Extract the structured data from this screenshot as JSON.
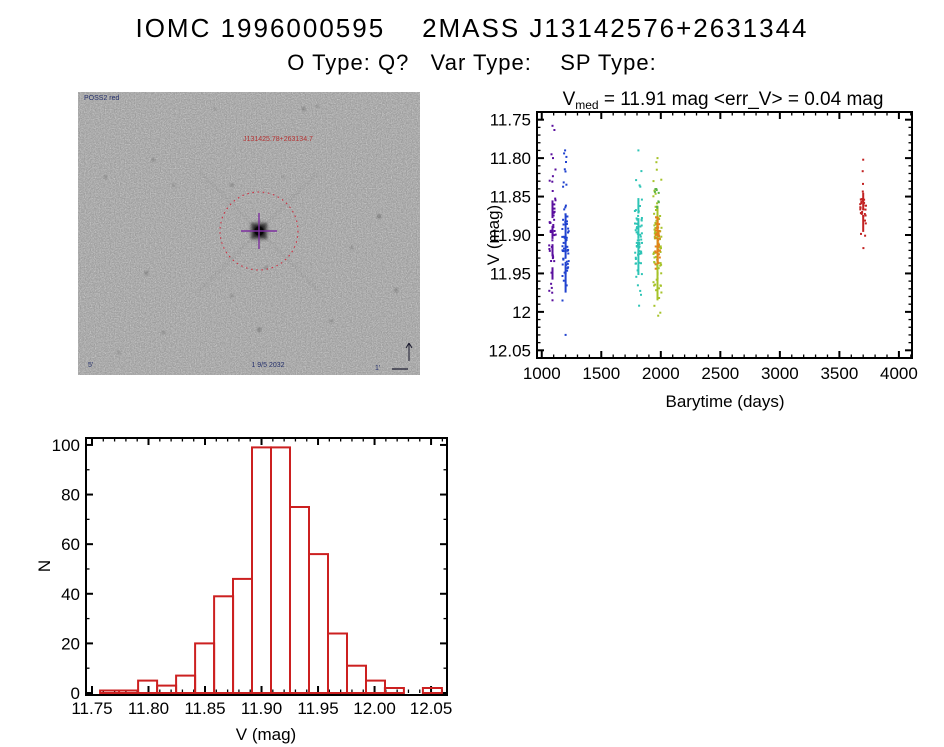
{
  "header": {
    "title": "IOMC 1996000595    2MASS J13142576+2631344",
    "subtitle": "O Type: Q?   Var Type:    SP Type:"
  },
  "finding_chart": {
    "survey_label": "POSS2 red",
    "target_label": "J131425.78+263134.7",
    "field_size_label": "5'",
    "epoch_label": "1 9/5 2032",
    "scale_label": "1'",
    "circle_color": "#cc3344",
    "crosshair_color": "#7d2f9f",
    "background_stars": [
      [
        0.66,
        0.06,
        2.2,
        0.3
      ],
      [
        0.22,
        0.24,
        2.0,
        0.28
      ],
      [
        0.08,
        0.3,
        2.0,
        0.25
      ],
      [
        0.28,
        0.33,
        1.8,
        0.22
      ],
      [
        0.45,
        0.33,
        2.0,
        0.3
      ],
      [
        0.6,
        0.3,
        1.6,
        0.2
      ],
      [
        0.88,
        0.44,
        2.4,
        0.35
      ],
      [
        0.8,
        0.55,
        2.0,
        0.25
      ],
      [
        0.2,
        0.64,
        2.2,
        0.3
      ],
      [
        0.55,
        0.62,
        1.8,
        0.28
      ],
      [
        0.45,
        0.72,
        2.0,
        0.25
      ],
      [
        0.93,
        0.7,
        2.2,
        0.3
      ],
      [
        0.25,
        0.85,
        2.0,
        0.26
      ],
      [
        0.53,
        0.84,
        2.4,
        0.34
      ],
      [
        0.74,
        0.81,
        2.0,
        0.26
      ],
      [
        0.7,
        0.05,
        1.8,
        0.22
      ],
      [
        0.12,
        0.92,
        1.8,
        0.22
      ],
      [
        0.4,
        0.06,
        1.6,
        0.2
      ]
    ]
  },
  "chart_data": [
    {
      "type": "scatter",
      "title_parts": {
        "pre": "V",
        "sub": "med",
        "post": " = 11.91 mag <err_V> = 0.04 mag"
      },
      "xlabel": "Barytime (days)",
      "ylabel": "V (mag)",
      "xlim": [
        960,
        4110
      ],
      "ylim": [
        11.74,
        12.06
      ],
      "y_inverted_magnitude_axis": true,
      "grid": false,
      "xticks": [
        1000,
        1500,
        2000,
        2500,
        3000,
        3500,
        4000
      ],
      "yticks": [
        11.75,
        11.8,
        11.85,
        11.9,
        11.95,
        12.0,
        12.05
      ],
      "x_minor_step": 100,
      "y_minor_step": 0.01,
      "clusters": [
        {
          "name": "epoch-1",
          "color": "#5a0f9e",
          "t": 1090,
          "t_spread": 30,
          "sparse": {
            "range": [
              11.758,
              11.985
            ],
            "n": 16
          },
          "dense": {
            "range": [
              11.845,
              11.965
            ],
            "n": 26
          },
          "runs": [
            [
              11.855,
              11.878
            ],
            [
              11.888,
              11.905
            ],
            [
              11.912,
              11.928
            ],
            [
              11.942,
              11.958
            ]
          ],
          "singles": [
            [
              1090,
              11.758
            ],
            [
              1082,
              11.795
            ],
            [
              1094,
              11.8
            ],
            [
              1088,
              11.975
            ],
            [
              1090,
              11.985
            ]
          ]
        },
        {
          "name": "epoch-2",
          "color": "#2143cf",
          "t": 1200,
          "t_spread": 28,
          "sparse": {
            "range": [
              11.79,
              12.005
            ],
            "n": 18
          },
          "dense": {
            "range": [
              11.86,
              11.98
            ],
            "n": 40
          },
          "runs": [
            [
              11.872,
              11.93
            ],
            [
              11.935,
              11.975
            ]
          ],
          "singles": [
            [
              1200,
              12.03
            ],
            [
              1196,
              11.79
            ],
            [
              1204,
              11.805
            ]
          ]
        },
        {
          "name": "epoch-3",
          "color": "#2ec4b6",
          "t": 1812,
          "t_spread": 30,
          "sparse": {
            "range": [
              11.815,
              11.995
            ],
            "n": 16
          },
          "dense": {
            "range": [
              11.848,
              11.958
            ],
            "n": 48
          },
          "runs": [
            [
              11.852,
              11.872
            ],
            [
              11.878,
              11.905
            ],
            [
              11.91,
              11.952
            ]
          ],
          "singles": [
            [
              1812,
              11.79
            ],
            [
              1818,
              11.992
            ]
          ]
        },
        {
          "name": "epoch-4",
          "color": "#a6c32a",
          "t": 1972,
          "t_spread": 34,
          "sparse": {
            "range": [
              11.8,
              12.005
            ],
            "n": 18
          },
          "dense": {
            "range": [
              11.855,
              11.99
            ],
            "n": 58
          },
          "runs": [
            [
              11.862,
              11.888
            ],
            [
              11.895,
              11.985
            ]
          ],
          "singles": [
            [
              1972,
              11.8
            ],
            [
              1978,
              12.005
            ],
            [
              1966,
              11.815
            ]
          ]
        },
        {
          "name": "epoch-4-top",
          "color": "#58b244",
          "t": 1968,
          "t_spread": 18,
          "sparse": {
            "range": [
              11.8,
              11.85
            ],
            "n": 5
          },
          "dense": {
            "range": [
              11.855,
              11.87
            ],
            "n": 4
          },
          "runs": [],
          "singles": []
        },
        {
          "name": "epoch-4-core",
          "color": "#e2821a",
          "t": 1974,
          "t_spread": 22,
          "sparse": {
            "range": [
              11.87,
              11.945
            ],
            "n": 0
          },
          "dense": {
            "range": [
              11.868,
              11.948
            ],
            "n": 36
          },
          "runs": [
            [
              11.876,
              11.9
            ],
            [
              11.904,
              11.938
            ]
          ],
          "singles": []
        },
        {
          "name": "epoch-5",
          "color": "#c22222",
          "t": 3700,
          "t_spread": 26,
          "sparse": {
            "range": [
              11.8,
              11.92
            ],
            "n": 6
          },
          "dense": {
            "range": [
              11.838,
              11.9
            ],
            "n": 22
          },
          "runs": [
            [
              11.845,
              11.868
            ],
            [
              11.874,
              11.896
            ]
          ],
          "singles": [
            [
              3700,
              11.802
            ],
            [
              3696,
              11.817
            ],
            [
              3702,
              11.917
            ]
          ]
        }
      ]
    },
    {
      "type": "bar",
      "style": "step-histogram",
      "color": "#cc2020",
      "xlabel": "V (mag)",
      "ylabel": "N",
      "xlim": [
        11.7447,
        12.0641
      ],
      "ylim": [
        0,
        102.8
      ],
      "grid": false,
      "xticks": [
        11.75,
        11.8,
        11.85,
        11.9,
        11.95,
        12.0,
        12.05
      ],
      "yticks": [
        0,
        20,
        40,
        60,
        80,
        100
      ],
      "x_minor_step": 0.01,
      "y_minor_step": 10,
      "bin_start": 11.7572,
      "bin_width": 0.0168,
      "counts": [
        1,
        1,
        5,
        3,
        7,
        20,
        39,
        46,
        99,
        99,
        75,
        56,
        24,
        11,
        5,
        2,
        0,
        2
      ]
    }
  ]
}
